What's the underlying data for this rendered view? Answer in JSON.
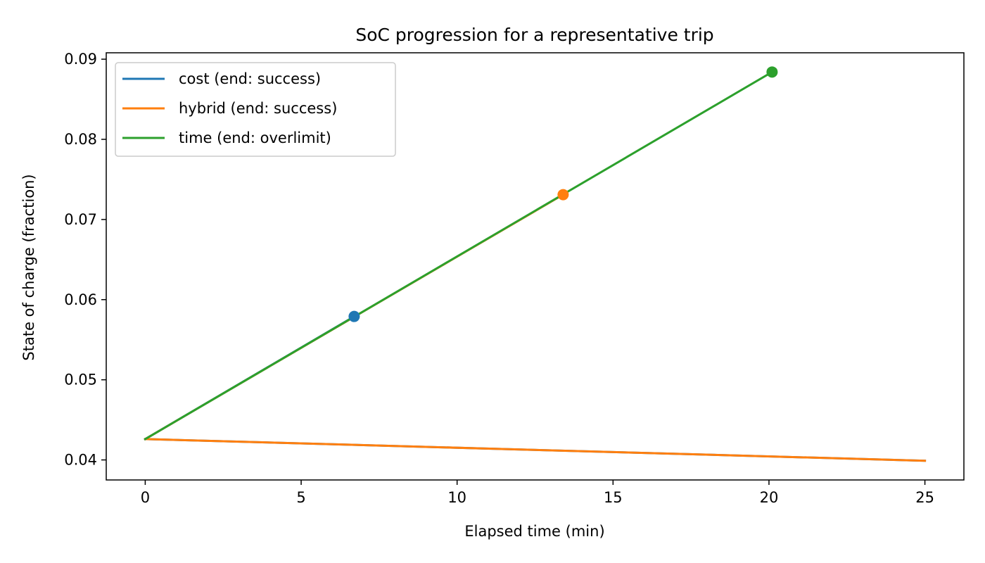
{
  "chart_data": {
    "type": "line",
    "title": "SoC progression for a representative trip",
    "xlabel": "Elapsed time (min)",
    "ylabel": "State of charge (fraction)",
    "xlim": [
      -1.25,
      26.25
    ],
    "ylim": [
      0.0375,
      0.0908
    ],
    "xticks": [
      0,
      5,
      10,
      15,
      20,
      25
    ],
    "yticks": [
      0.04,
      0.05,
      0.06,
      0.07,
      0.08,
      0.09
    ],
    "xtick_labels": [
      "0",
      "5",
      "10",
      "15",
      "20",
      "25"
    ],
    "ytick_labels": [
      "0.04",
      "0.05",
      "0.06",
      "0.07",
      "0.08",
      "0.09"
    ],
    "grid": false,
    "legend_position": "upper-left",
    "series": [
      {
        "name": "cost (end: success)",
        "color": "#1f77b4",
        "lines": [
          {
            "x": [
              0,
              6.7
            ],
            "y": [
              0.0426,
              0.0579
            ]
          },
          {
            "x": [
              0,
              25
            ],
            "y": [
              0.0426,
              0.0399
            ]
          }
        ],
        "end_marker": {
          "x": 6.7,
          "y": 0.0579
        }
      },
      {
        "name": "hybrid (end: success)",
        "color": "#ff7f0e",
        "lines": [
          {
            "x": [
              0,
              13.4
            ],
            "y": [
              0.0426,
              0.0731
            ]
          },
          {
            "x": [
              0,
              25
            ],
            "y": [
              0.0426,
              0.0399
            ]
          }
        ],
        "end_marker": {
          "x": 13.4,
          "y": 0.0731
        }
      },
      {
        "name": "time (end: overlimit)",
        "color": "#2ca02c",
        "lines": [
          {
            "x": [
              0,
              20.1
            ],
            "y": [
              0.0426,
              0.0884
            ]
          }
        ],
        "end_marker": {
          "x": 20.1,
          "y": 0.0884
        }
      }
    ]
  }
}
